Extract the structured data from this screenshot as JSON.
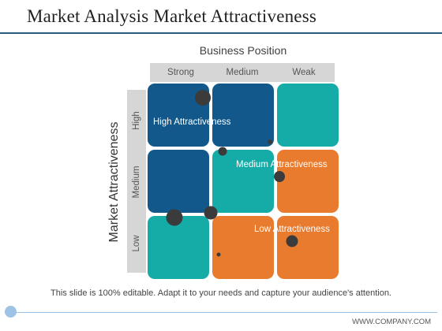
{
  "title": "Market Analysis Market Attractiveness",
  "x_axis_title": "Business Position",
  "y_axis_title": "Market Attractiveness",
  "columns": [
    "Strong",
    "Medium",
    "Weak"
  ],
  "rows": [
    "High",
    "Medium",
    "Low"
  ],
  "colors": {
    "dark_blue": "#13588a",
    "teal": "#15aba6",
    "orange": "#e97b2f",
    "dot": "#3b3b3b",
    "accent_line": "#2b5b7a"
  },
  "grid": [
    [
      "dark_blue",
      "dark_blue",
      "teal"
    ],
    [
      "dark_blue",
      "teal",
      "orange"
    ],
    [
      "teal",
      "orange",
      "orange"
    ]
  ],
  "zones": {
    "high": "High  Attractiveness",
    "medium": "Medium Attractiveness",
    "low": "Low Attractiveness"
  },
  "footnote": "This slide is 100% editable. Adapt it to your needs and capture your audience's attention.",
  "company": "WWW.COMPANY.COM"
}
